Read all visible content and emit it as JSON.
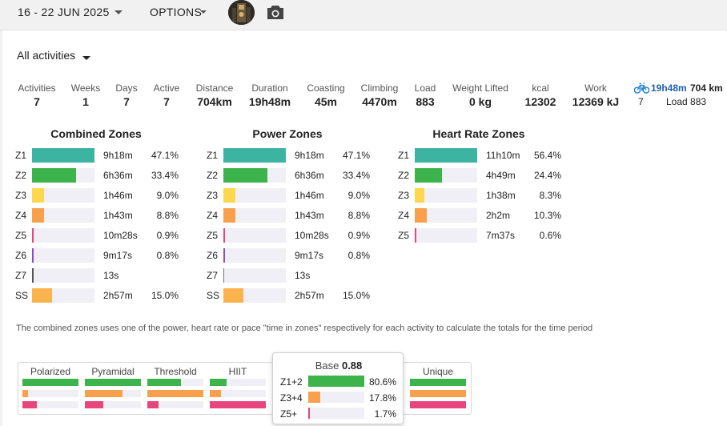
{
  "header": {
    "date_range": "16 - 22 JUN 2025",
    "options_label": "OPTIONS",
    "camera_icon": "camera-icon"
  },
  "activity_filter": {
    "label": "All activities"
  },
  "stats": [
    {
      "label": "Activities",
      "value": "7"
    },
    {
      "label": "Weeks",
      "value": "1"
    },
    {
      "label": "Days",
      "value": "7"
    },
    {
      "label": "Active",
      "value": "7"
    },
    {
      "label": "Distance",
      "value": "704km"
    },
    {
      "label": "Duration",
      "value": "19h48m"
    },
    {
      "label": "Coasting",
      "value": "45m"
    },
    {
      "label": "Climbing",
      "value": "4470m"
    },
    {
      "label": "Load",
      "value": "883"
    },
    {
      "label": "Weight Lifted",
      "value": "0 kg"
    },
    {
      "label": "kcal",
      "value": "12302"
    },
    {
      "label": "Work",
      "value": "12369 kJ"
    }
  ],
  "ride_summary": {
    "icon": "bike-icon",
    "duration": "19h48m",
    "distance": "704 km",
    "count": "7",
    "load": "Load 883"
  },
  "zones": {
    "combined": {
      "title": "Combined Zones",
      "rows": [
        {
          "zone": "Z1",
          "time": "9h18m",
          "percent": "47.1%",
          "fraction": 1.0,
          "color": "#3db3a1"
        },
        {
          "zone": "Z2",
          "time": "6h36m",
          "percent": "33.4%",
          "fraction": 0.71,
          "color": "#3cb44b"
        },
        {
          "zone": "Z3",
          "time": "1h46m",
          "percent": "9.0%",
          "fraction": 0.19,
          "color": "#fdd84f"
        },
        {
          "zone": "Z4",
          "time": "1h43m",
          "percent": "8.8%",
          "fraction": 0.19,
          "color": "#f9a04c"
        },
        {
          "zone": "Z5",
          "time": "10m28s",
          "percent": "0.9%",
          "fraction": 0.02,
          "color": "#e8457c"
        },
        {
          "zone": "Z6",
          "time": "9m17s",
          "percent": "0.8%",
          "fraction": 0.02,
          "color": "#8a4fc4"
        },
        {
          "zone": "Z7",
          "time": "13s",
          "percent": "",
          "fraction": 0.01,
          "color": "#555555"
        },
        {
          "zone": "SS",
          "time": "2h57m",
          "percent": "15.0%",
          "fraction": 0.32,
          "color": "#fbb44d"
        }
      ]
    },
    "power": {
      "title": "Power Zones",
      "rows": [
        {
          "zone": "Z1",
          "time": "9h18m",
          "percent": "47.1%",
          "fraction": 1.0,
          "color": "#3db3a1"
        },
        {
          "zone": "Z2",
          "time": "6h36m",
          "percent": "33.4%",
          "fraction": 0.71,
          "color": "#3cb44b"
        },
        {
          "zone": "Z3",
          "time": "1h46m",
          "percent": "9.0%",
          "fraction": 0.19,
          "color": "#fdd84f"
        },
        {
          "zone": "Z4",
          "time": "1h43m",
          "percent": "8.8%",
          "fraction": 0.19,
          "color": "#f9a04c"
        },
        {
          "zone": "Z5",
          "time": "10m28s",
          "percent": "0.9%",
          "fraction": 0.02,
          "color": "#e8457c"
        },
        {
          "zone": "Z6",
          "time": "9m17s",
          "percent": "0.8%",
          "fraction": 0.02,
          "color": "#8a4fc4"
        },
        {
          "zone": "Z7",
          "time": "13s",
          "percent": "",
          "fraction": 0.0,
          "color": "#555555"
        },
        {
          "zone": "SS",
          "time": "2h57m",
          "percent": "15.0%",
          "fraction": 0.32,
          "color": "#fbb44d"
        }
      ]
    },
    "heart_rate": {
      "title": "Heart Rate Zones",
      "rows": [
        {
          "zone": "Z1",
          "time": "11h10m",
          "percent": "56.4%",
          "fraction": 1.0,
          "color": "#3db3a1"
        },
        {
          "zone": "Z2",
          "time": "4h49m",
          "percent": "24.4%",
          "fraction": 0.44,
          "color": "#3cb44b"
        },
        {
          "zone": "Z3",
          "time": "1h38m",
          "percent": "8.3%",
          "fraction": 0.15,
          "color": "#fdd84f"
        },
        {
          "zone": "Z4",
          "time": "2h2m",
          "percent": "10.3%",
          "fraction": 0.19,
          "color": "#f9a04c"
        },
        {
          "zone": "Z5",
          "time": "7m37s",
          "percent": "0.6%",
          "fraction": 0.01,
          "color": "#e8457c"
        }
      ]
    }
  },
  "note": "The combined zones uses one of the power, heart rate or pace \"time in zones\" respectively for each activity to calculate the totals for the time period",
  "distribution": [
    {
      "label": "Polarized",
      "bars": [
        1.0,
        0.1,
        0.25
      ]
    },
    {
      "label": "Pyramidal",
      "bars": [
        1.0,
        0.67,
        0.33
      ]
    },
    {
      "label": "Threshold",
      "bars": [
        0.6,
        1.0,
        0.2
      ]
    },
    {
      "label": "HIIT",
      "bars": [
        0.3,
        0.2,
        1.0
      ]
    },
    {
      "label": "Unique",
      "bars": [
        1.0,
        1.0,
        1.0
      ]
    }
  ],
  "distribution_colors": [
    "#3cb44b",
    "#f9a04c",
    "#e8457c"
  ],
  "tooltip": {
    "title": "Base",
    "value": "0.88",
    "rows": [
      {
        "label": "Z1+2",
        "percent": "80.6%",
        "fraction": 1.0,
        "color": "#3cb44b"
      },
      {
        "label": "Z3+4",
        "percent": "17.8%",
        "fraction": 0.22,
        "color": "#f9a04c"
      },
      {
        "label": "Z5+",
        "percent": "1.7%",
        "fraction": 0.02,
        "color": "#e8457c"
      }
    ]
  }
}
